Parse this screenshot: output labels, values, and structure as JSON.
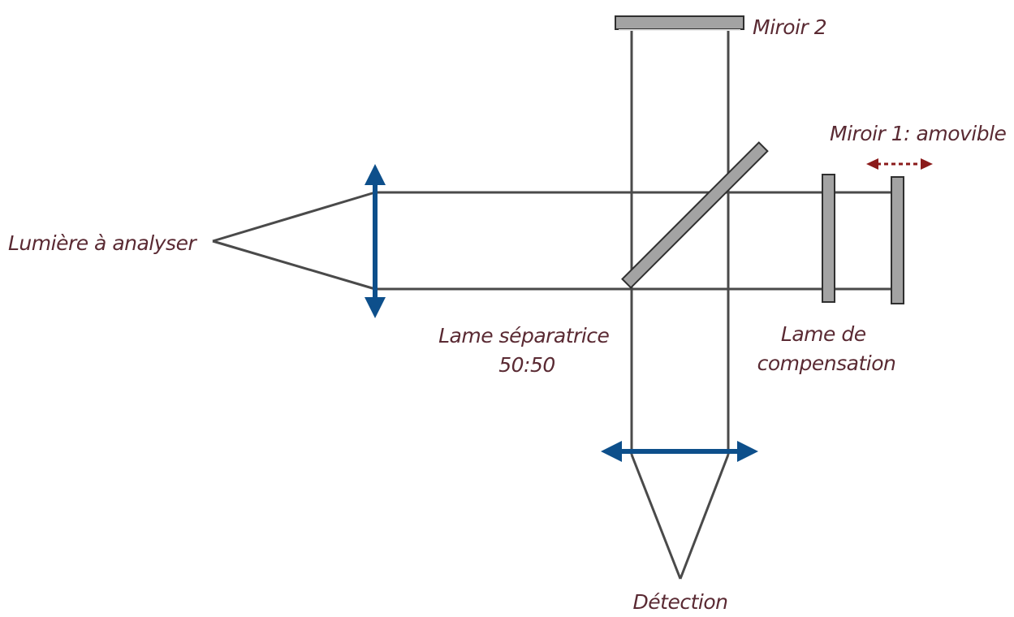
{
  "labels": {
    "source": "Lumière à analyser",
    "mirror2": "Miroir 2",
    "mirror1": "Miroir 1: amovible",
    "beamsplitter_line1": "Lame séparatrice",
    "beamsplitter_line2": "50:50",
    "compensator_line1": "Lame de",
    "compensator_line2": "compensation",
    "detection": "Détection"
  },
  "colors": {
    "text": "#5a2a33",
    "beam": "#4a4a4a",
    "lens": "#0d4f8b",
    "optic_fill": "#a3a3a3",
    "movement_arrow": "#8b1a1a"
  }
}
